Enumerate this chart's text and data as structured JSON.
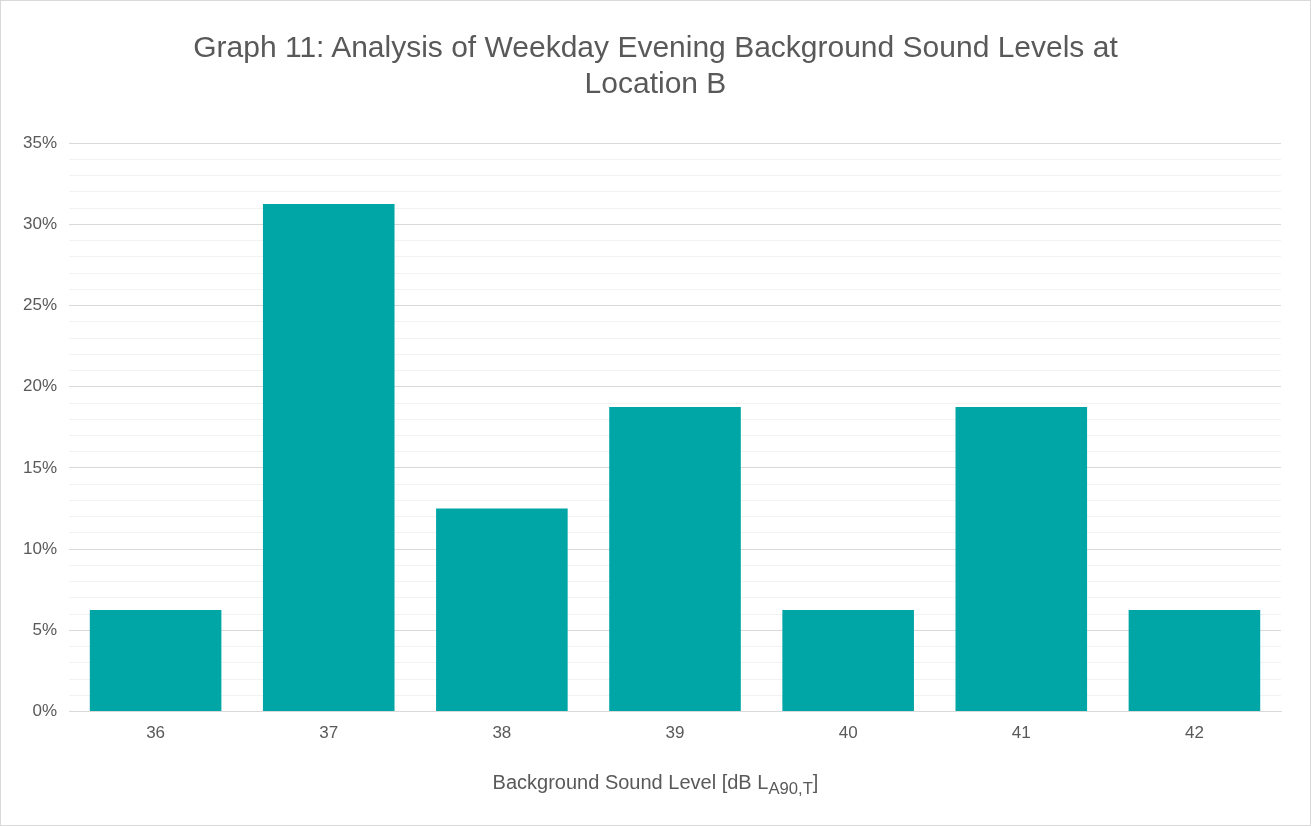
{
  "chart_data": {
    "type": "bar",
    "title": "Graph 11: Analysis of Weekday Evening Background Sound Levels at Location B",
    "xlabel": "Background Sound Level [dB L$_{A90,T}$]",
    "categories": [
      "36",
      "37",
      "38",
      "39",
      "40",
      "41",
      "42"
    ],
    "values": [
      6.25,
      31.25,
      12.5,
      18.75,
      6.25,
      18.75,
      6.25
    ],
    "color": "#00a6a6",
    "ylim": [
      0,
      35
    ],
    "yticks": [
      {
        "value": 0,
        "label": "0%"
      },
      {
        "value": 1,
        "label": null
      },
      {
        "value": 2,
        "label": null
      },
      {
        "value": 3,
        "label": null
      },
      {
        "value": 4,
        "label": null
      },
      {
        "value": 5,
        "label": "5%"
      },
      {
        "value": 6,
        "label": null
      },
      {
        "value": 7,
        "label": null
      },
      {
        "value": 8,
        "label": null
      },
      {
        "value": 9,
        "label": null
      },
      {
        "value": 10,
        "label": "10%"
      },
      {
        "value": 11,
        "label": null
      },
      {
        "value": 12,
        "label": null
      },
      {
        "value": 13,
        "label": null
      },
      {
        "value": 14,
        "label": null
      },
      {
        "value": 15,
        "label": "15%"
      },
      {
        "value": 16,
        "label": null
      },
      {
        "value": 17,
        "label": null
      },
      {
        "value": 18,
        "label": null
      },
      {
        "value": 19,
        "label": null
      },
      {
        "value": 20,
        "label": "20%"
      },
      {
        "value": 21,
        "label": null
      },
      {
        "value": 22,
        "label": null
      },
      {
        "value": 23,
        "label": null
      },
      {
        "value": 24,
        "label": null
      },
      {
        "value": 25,
        "label": "25%"
      },
      {
        "value": 26,
        "label": null
      },
      {
        "value": 27,
        "label": null
      },
      {
        "value": 28,
        "label": null
      },
      {
        "value": 29,
        "label": null
      },
      {
        "value": 30,
        "label": "30%"
      },
      {
        "value": 31,
        "label": null
      },
      {
        "value": 32,
        "label": null
      },
      {
        "value": 33,
        "label": null
      },
      {
        "value": 34,
        "label": null
      },
      {
        "value": 35,
        "label": "35%"
      }
    ],
    "grid": true,
    "legend": false
  }
}
